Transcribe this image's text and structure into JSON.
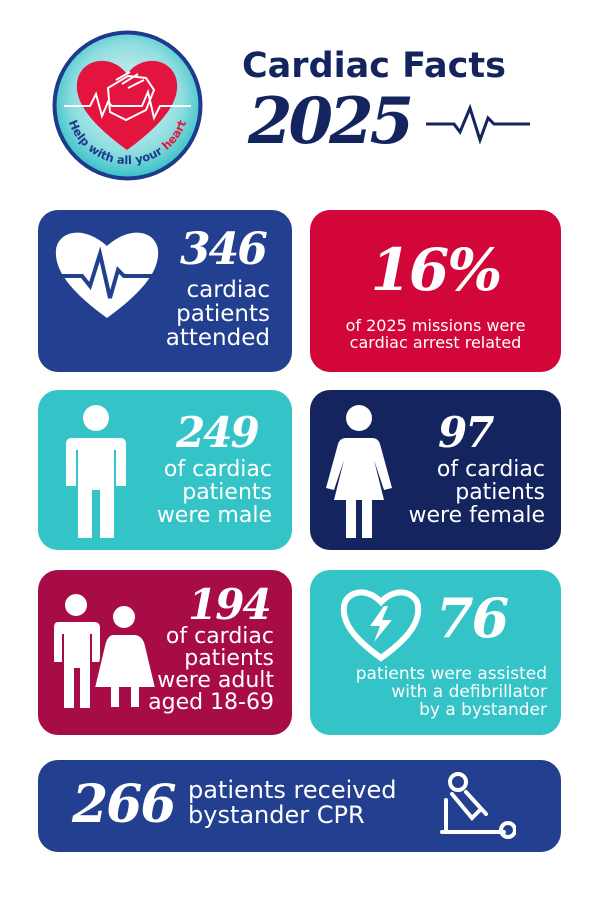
{
  "colors": {
    "navy": "#233f8f",
    "darknavy": "#13245e",
    "red": "#d3063a",
    "teal": "#34c3c7",
    "maroon": "#a70c47",
    "title": "#13245e"
  },
  "logo": {
    "text_a": "Help with all your ",
    "text_b": "heart",
    "icon": "heart-hands-icon"
  },
  "header": {
    "title": "Cardiac Facts",
    "year": "2025",
    "icon": "heartbeat-line-icon"
  },
  "stats": {
    "attended": {
      "number": "346",
      "lines": [
        "cardiac",
        "patients",
        "attended"
      ],
      "icon": "heart-pulse-icon"
    },
    "arrest": {
      "number": "16%",
      "lines": [
        "of 2025 missions were",
        "cardiac arrest related"
      ]
    },
    "male": {
      "number": "249",
      "lines": [
        "of cardiac",
        "patients",
        "were male"
      ],
      "icon": "male-figure-icon"
    },
    "female": {
      "number": "97",
      "lines": [
        "of cardiac",
        "patients",
        "were female"
      ],
      "icon": "female-figure-icon"
    },
    "adult": {
      "number": "194",
      "lines": [
        "of cardiac",
        "patients",
        "were adult",
        "aged 18-69"
      ],
      "icon": "couple-figures-icon"
    },
    "defib": {
      "number": "76",
      "lines": [
        "patients were assisted",
        "with a defibrillator",
        "by a bystander"
      ],
      "icon": "defibrillator-heart-icon"
    },
    "cpr": {
      "number": "266",
      "lines": [
        "patients received",
        "bystander CPR"
      ],
      "icon": "cpr-person-icon"
    }
  }
}
